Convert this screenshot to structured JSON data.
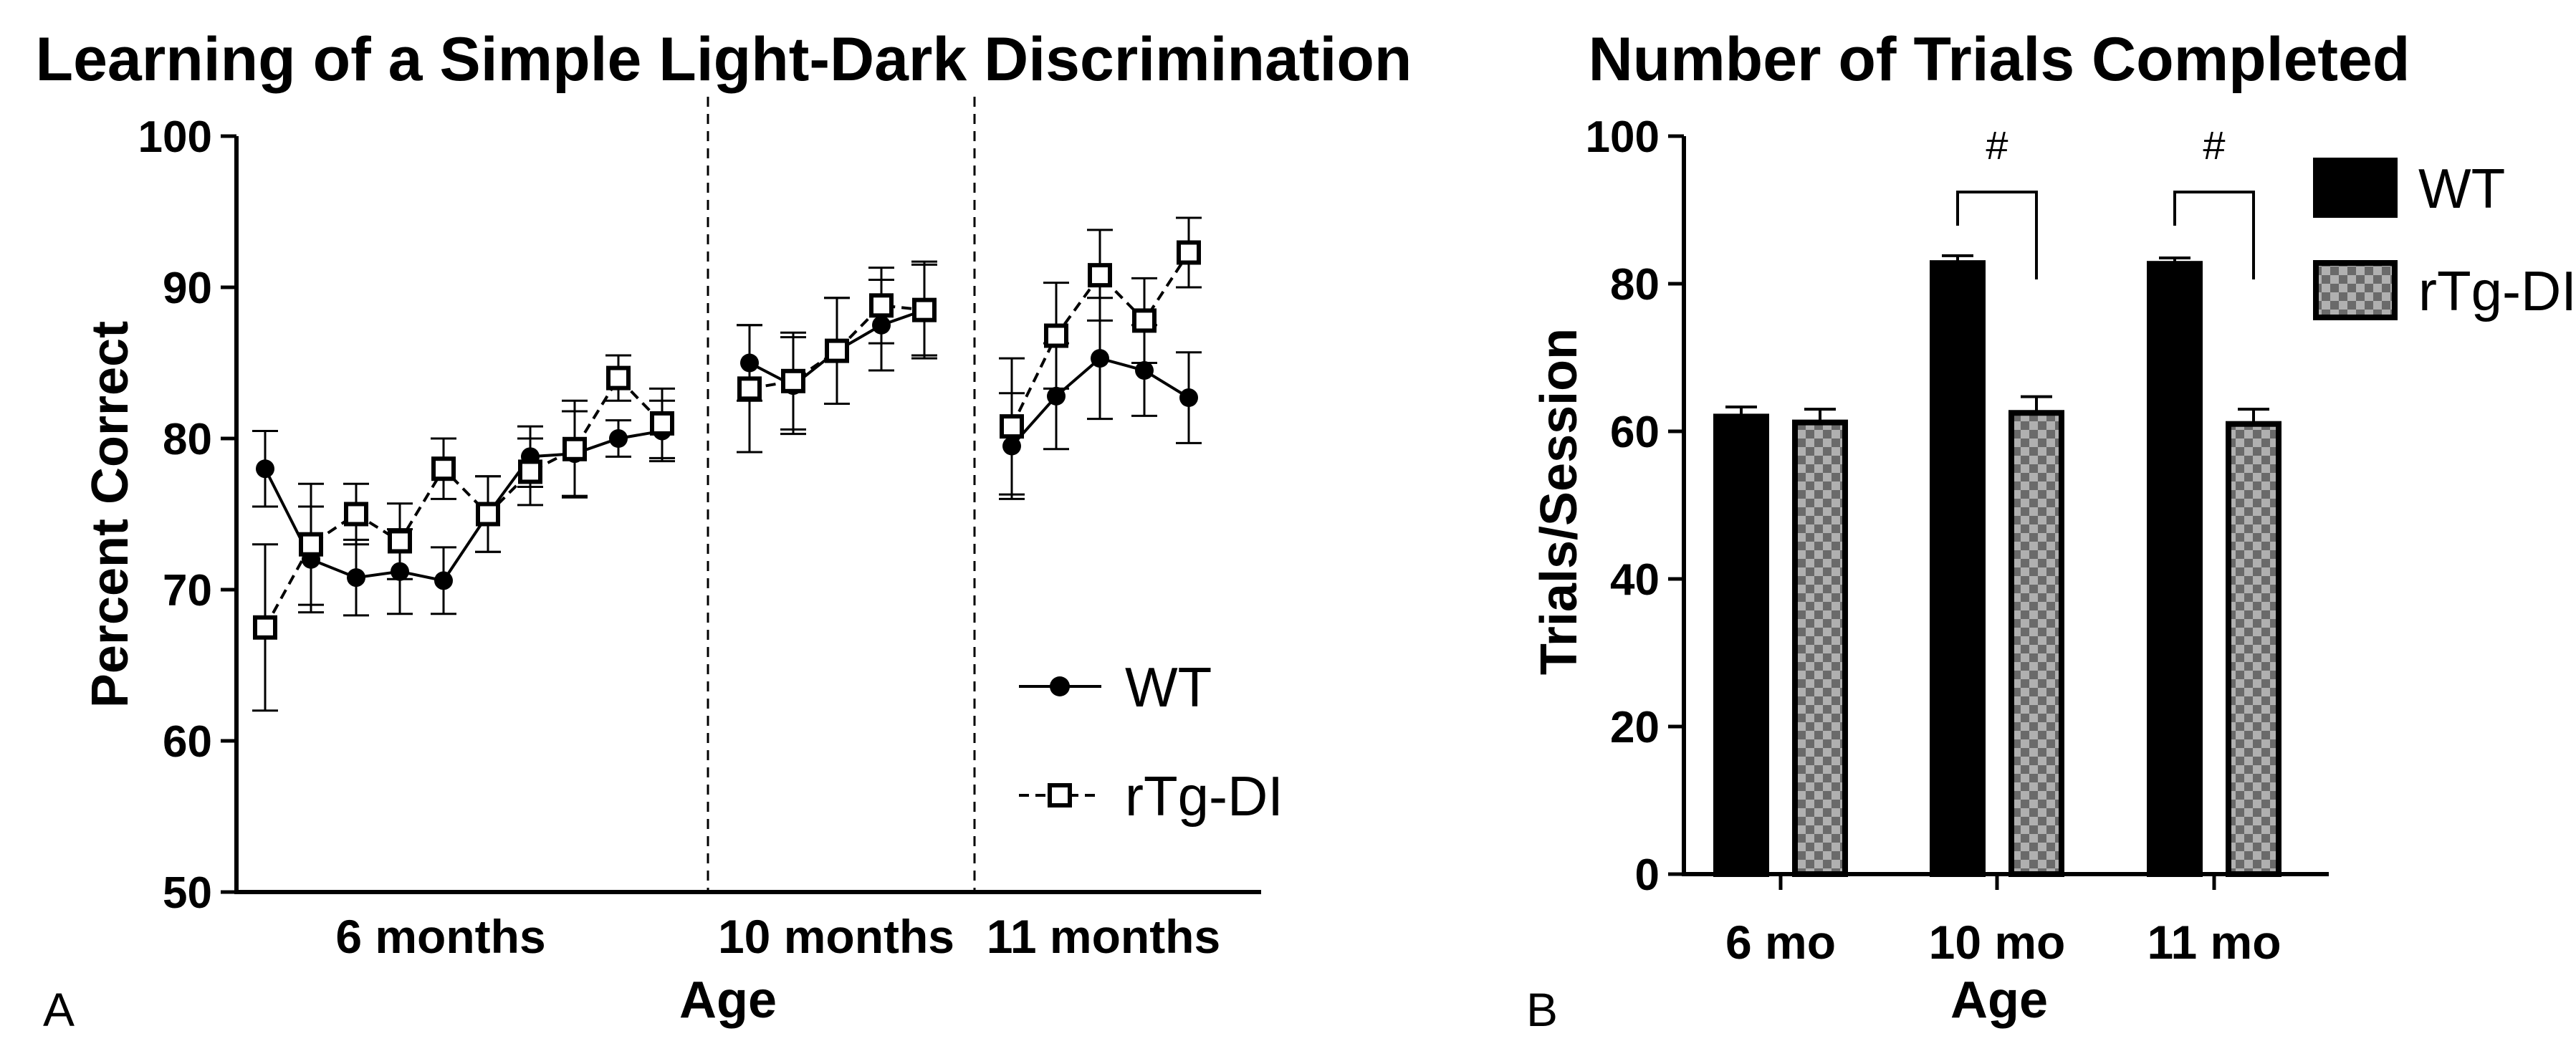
{
  "chart_data": [
    {
      "panel_label": "A",
      "type": "line",
      "title": "Learning of a Simple Light-Dark Discrimination",
      "xlabel": "Age",
      "ylabel": "Percent Correct",
      "ylim": [
        50,
        100
      ],
      "yticks": [
        "50",
        "60",
        "70",
        "80",
        "90",
        "100"
      ],
      "groups": [
        {
          "label": "6 months",
          "sessions": 10
        },
        {
          "label": "10 months",
          "sessions": 5
        },
        {
          "label": "11 months",
          "sessions": 5
        }
      ],
      "legend_position": "bottom-right",
      "series": [
        {
          "name": "WT",
          "marker": "filled-circle",
          "line": "solid",
          "segments": [
            {
              "values": [
                78,
                72,
                70.8,
                71.2,
                70.6,
                75,
                78.8,
                79,
                80,
                80.5
              ],
              "errors": [
                2.5,
                3.5,
                2.5,
                2.8,
                2.2,
                2.5,
                2,
                2.8,
                1.2,
                2
              ]
            },
            {
              "values": [
                85,
                83.5,
                85.8,
                87.5,
                88.5
              ],
              "errors": [
                2.5,
                3.2,
                3.5,
                3,
                3.2
              ]
            },
            {
              "values": [
                79.5,
                82.8,
                85.3,
                84.5,
                82.7
              ],
              "errors": [
                3.5,
                3.5,
                4,
                3,
                3
              ]
            }
          ]
        },
        {
          "name": "rTg-DI",
          "marker": "open-square",
          "line": "dashed",
          "segments": [
            {
              "values": [
                67.5,
                73,
                75,
                73.2,
                78,
                75,
                77.8,
                79.3,
                84,
                81
              ],
              "errors": [
                5.5,
                4,
                2,
                2.5,
                2,
                2.5,
                2.2,
                3.2,
                1.5,
                2.3
              ]
            },
            {
              "values": [
                83.3,
                83.8,
                85.8,
                88.8,
                88.5
              ],
              "errors": [
                4.2,
                3.2,
                3.5,
                2.5,
                3
              ]
            },
            {
              "values": [
                80.8,
                86.8,
                90.8,
                87.8,
                92.3
              ],
              "errors": [
                4.5,
                3.5,
                3,
                2.8,
                2.3
              ]
            }
          ]
        }
      ]
    },
    {
      "panel_label": "B",
      "type": "bar",
      "title": "Number of Trials Completed",
      "xlabel": "Age",
      "ylabel": "Trials/Session",
      "ylim": [
        0,
        100
      ],
      "yticks": [
        "0",
        "20",
        "40",
        "60",
        "80",
        "100"
      ],
      "categories": [
        "6 mo",
        "10 mo",
        "11 mo"
      ],
      "legend_position": "top-right",
      "series": [
        {
          "name": "WT",
          "fill": "solid-black",
          "values": [
            62,
            82.8,
            82.7
          ],
          "errors": [
            1.3,
            1,
            0.8
          ]
        },
        {
          "name": "rTg-DI",
          "fill": "checkered-gray",
          "values": [
            61.2,
            62.5,
            61
          ],
          "errors": [
            1.8,
            2.2,
            2
          ]
        }
      ],
      "significance": [
        {
          "category": "10 mo",
          "symbol": "#"
        },
        {
          "category": "11 mo",
          "symbol": "#"
        }
      ]
    }
  ]
}
